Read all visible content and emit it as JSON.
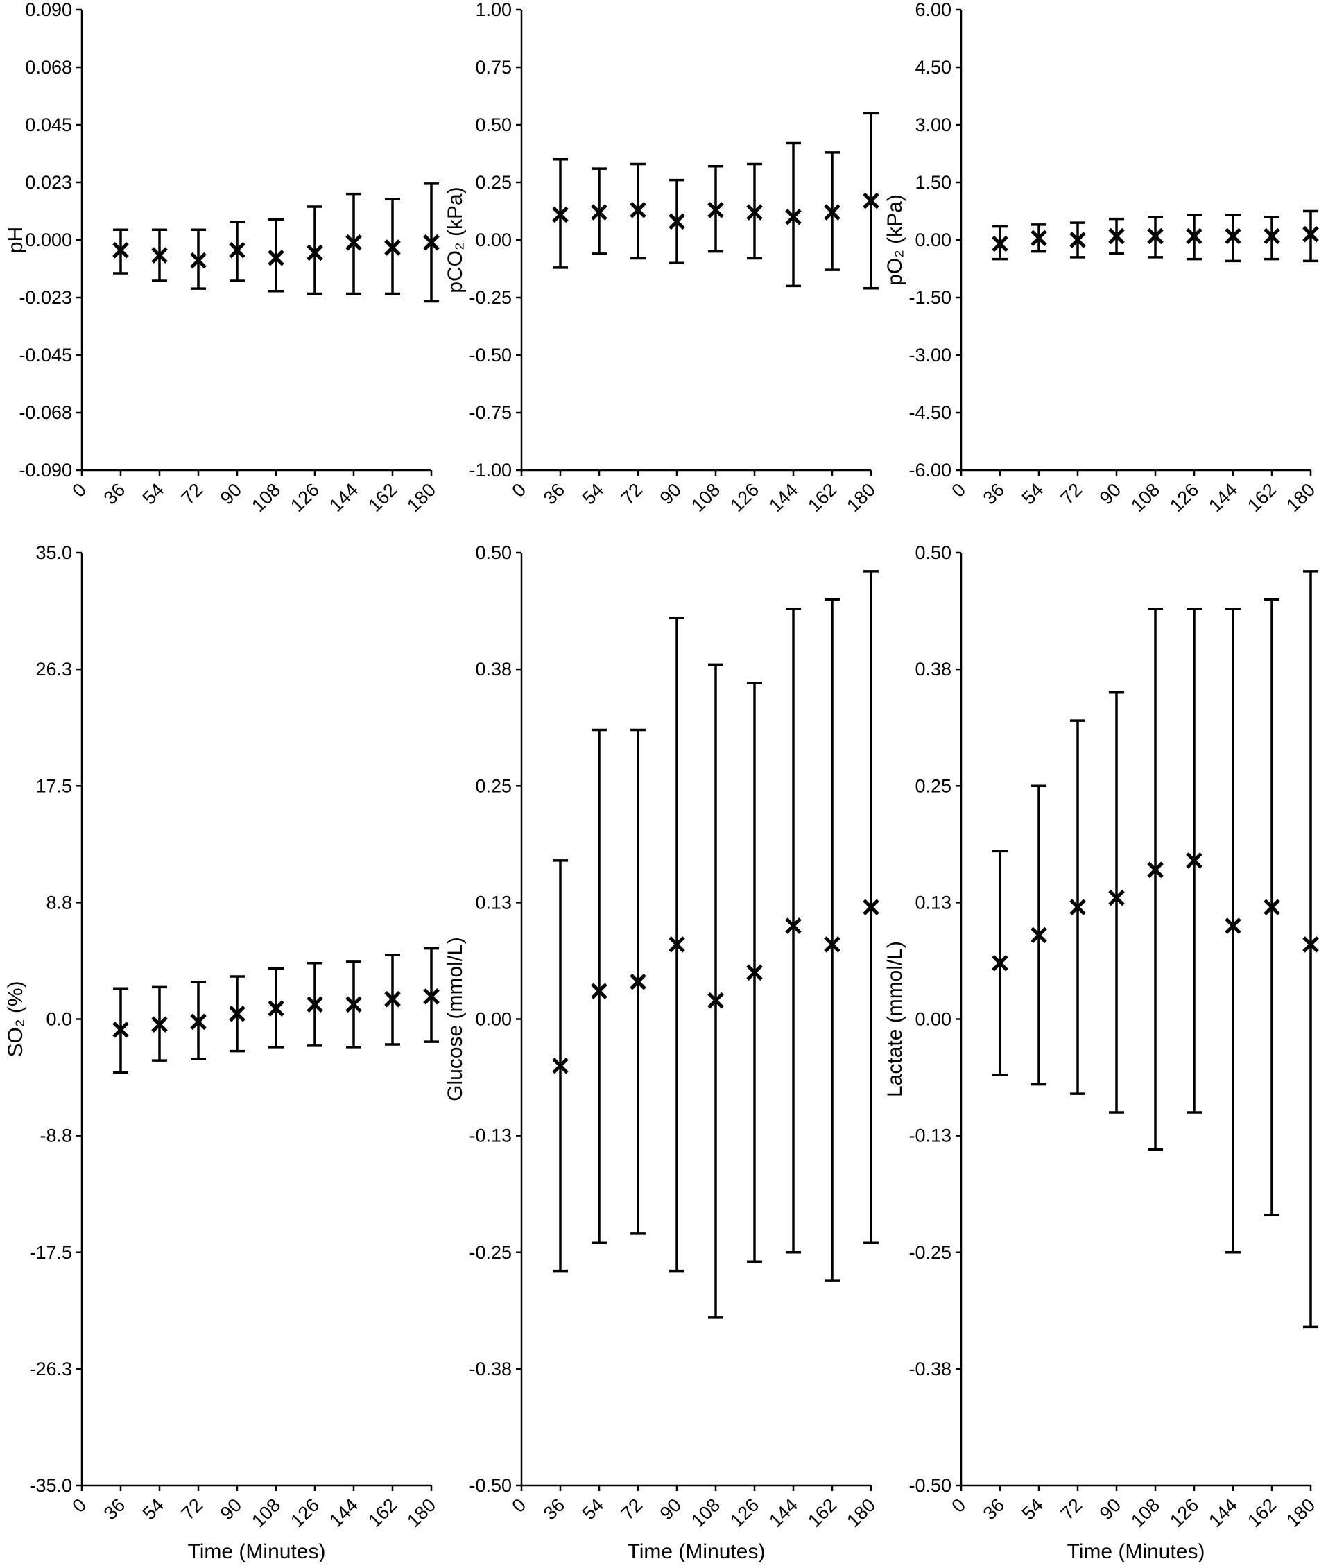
{
  "figure": {
    "background": "#ffffff",
    "axis_color": "#000000",
    "marker_color": "#000000",
    "marker_glyph": "x",
    "xlabel": "Time (Minutes)",
    "x_tick_labels": [
      "0",
      "36",
      "54",
      "72",
      "90",
      "108",
      "126",
      "144",
      "162",
      "180"
    ]
  },
  "chart_data": [
    {
      "type": "scatter",
      "subtype": "errorbar",
      "row": "top",
      "ylabel": "pH",
      "ylim": [
        -0.09,
        0.09
      ],
      "y_tick_labels": [
        "0.090",
        "0.068",
        "0.045",
        "0.023",
        "0.000",
        "-0.023",
        "-0.045",
        "-0.068",
        "-0.090"
      ],
      "x": [
        36,
        54,
        72,
        90,
        108,
        126,
        144,
        162,
        180
      ],
      "mean": [
        -0.004,
        -0.006,
        -0.008,
        -0.004,
        -0.007,
        -0.005,
        -0.001,
        -0.003,
        -0.001
      ],
      "upper": [
        0.004,
        0.004,
        0.004,
        0.007,
        0.008,
        0.013,
        0.018,
        0.016,
        0.022
      ],
      "lower": [
        -0.013,
        -0.016,
        -0.019,
        -0.016,
        -0.02,
        -0.021,
        -0.021,
        -0.021,
        -0.024
      ]
    },
    {
      "type": "scatter",
      "subtype": "errorbar",
      "row": "top",
      "ylabel": "pCO₂ (kPa)",
      "ylim": [
        -1.0,
        1.0
      ],
      "y_tick_labels": [
        "1.00",
        "0.75",
        "0.50",
        "0.25",
        "0.00",
        "-0.25",
        "-0.50",
        "-0.75",
        "-1.00"
      ],
      "x": [
        36,
        54,
        72,
        90,
        108,
        126,
        144,
        162,
        180
      ],
      "mean": [
        0.11,
        0.12,
        0.13,
        0.08,
        0.13,
        0.12,
        0.1,
        0.12,
        0.17
      ],
      "upper": [
        0.35,
        0.31,
        0.33,
        0.26,
        0.32,
        0.33,
        0.42,
        0.38,
        0.55
      ],
      "lower": [
        -0.12,
        -0.06,
        -0.08,
        -0.1,
        -0.05,
        -0.08,
        -0.2,
        -0.13,
        -0.21
      ]
    },
    {
      "type": "scatter",
      "subtype": "errorbar",
      "row": "top",
      "ylabel": "pO₂ (kPa)",
      "ylim": [
        -6.0,
        6.0
      ],
      "y_tick_labels": [
        "6.00",
        "4.50",
        "3.00",
        "1.50",
        "0.00",
        "-1.50",
        "-3.00",
        "-4.50",
        "-6.00"
      ],
      "x": [
        36,
        54,
        72,
        90,
        108,
        126,
        144,
        162,
        180
      ],
      "mean": [
        -0.1,
        0.05,
        0.0,
        0.1,
        0.1,
        0.1,
        0.1,
        0.1,
        0.15
      ],
      "upper": [
        0.35,
        0.4,
        0.45,
        0.55,
        0.6,
        0.65,
        0.65,
        0.6,
        0.75
      ],
      "lower": [
        -0.5,
        -0.3,
        -0.45,
        -0.35,
        -0.45,
        -0.5,
        -0.55,
        -0.5,
        -0.55
      ]
    },
    {
      "type": "scatter",
      "subtype": "errorbar",
      "row": "bottom",
      "ylabel": "SO₂ (%)",
      "ylim": [
        -35.0,
        35.0
      ],
      "y_tick_labels": [
        "35.0",
        "26.3",
        "17.5",
        "8.8",
        "0.0",
        "-8.8",
        "-17.5",
        "-26.3",
        "-35.0"
      ],
      "x": [
        36,
        54,
        72,
        90,
        108,
        126,
        144,
        162,
        180
      ],
      "mean": [
        -0.8,
        -0.4,
        -0.2,
        0.4,
        0.8,
        1.1,
        1.1,
        1.5,
        1.7
      ],
      "upper": [
        2.3,
        2.4,
        2.8,
        3.2,
        3.8,
        4.2,
        4.3,
        4.8,
        5.3
      ],
      "lower": [
        -4.0,
        -3.1,
        -3.0,
        -2.4,
        -2.1,
        -2.0,
        -2.1,
        -1.9,
        -1.7
      ]
    },
    {
      "type": "scatter",
      "subtype": "errorbar",
      "row": "bottom",
      "ylabel": "Glucose (mmol/L)",
      "ylim": [
        -0.5,
        0.5
      ],
      "y_tick_labels": [
        "0.50",
        "0.38",
        "0.25",
        "0.13",
        "0.00",
        "-0.13",
        "-0.25",
        "-0.38",
        "-0.50"
      ],
      "x": [
        36,
        54,
        72,
        90,
        108,
        126,
        144,
        162,
        180
      ],
      "mean": [
        -0.05,
        0.03,
        0.04,
        0.08,
        0.02,
        0.05,
        0.1,
        0.08,
        0.12
      ],
      "upper": [
        0.17,
        0.31,
        0.31,
        0.43,
        0.38,
        0.36,
        0.44,
        0.45,
        0.48
      ],
      "lower": [
        -0.27,
        -0.24,
        -0.23,
        -0.27,
        -0.32,
        -0.26,
        -0.25,
        -0.28,
        -0.24
      ]
    },
    {
      "type": "scatter",
      "subtype": "errorbar",
      "row": "bottom",
      "ylabel": "Lactate (mmol/L)",
      "ylim": [
        -0.5,
        0.5
      ],
      "y_tick_labels": [
        "0.50",
        "0.38",
        "0.25",
        "0.13",
        "0.00",
        "-0.13",
        "-0.25",
        "-0.38",
        "-0.50"
      ],
      "x": [
        36,
        54,
        72,
        90,
        108,
        126,
        144,
        162,
        180
      ],
      "mean": [
        0.06,
        0.09,
        0.12,
        0.13,
        0.16,
        0.17,
        0.1,
        0.12,
        0.08
      ],
      "upper": [
        0.18,
        0.25,
        0.32,
        0.35,
        0.44,
        0.44,
        0.44,
        0.45,
        0.48
      ],
      "lower": [
        -0.06,
        -0.07,
        -0.08,
        -0.1,
        -0.14,
        -0.1,
        -0.25,
        -0.21,
        -0.33
      ]
    }
  ]
}
